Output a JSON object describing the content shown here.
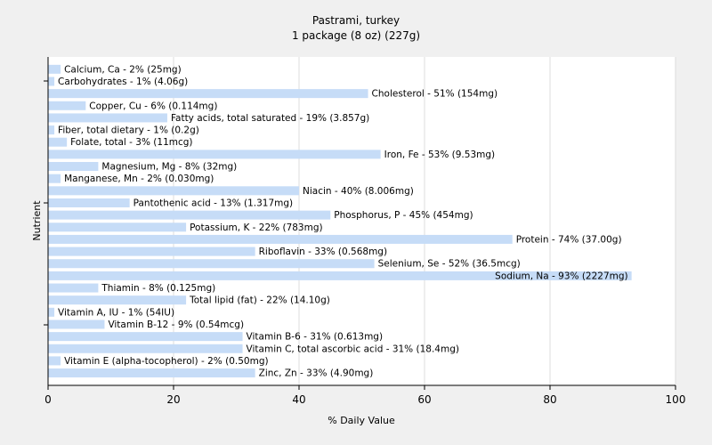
{
  "chart_data": {
    "type": "bar",
    "orientation": "horizontal",
    "title": "Pastrami, turkey",
    "subtitle": "1 package (8 oz) (227g)",
    "xlabel": "% Daily Value",
    "ylabel": "Nutrient",
    "xlim": [
      0,
      100
    ],
    "xticks": [
      0,
      20,
      40,
      60,
      80,
      100
    ],
    "grid": true,
    "bar_color": "#c6dcf7",
    "bars": [
      {
        "name": "Calcium, Ca",
        "value": 2,
        "label": "Calcium, Ca - 2% (25mg)"
      },
      {
        "name": "Carbohydrates",
        "value": 1,
        "label": "Carbohydrates - 1% (4.06g)"
      },
      {
        "name": "Cholesterol",
        "value": 51,
        "label": "Cholesterol - 51% (154mg)"
      },
      {
        "name": "Copper, Cu",
        "value": 6,
        "label": "Copper, Cu - 6% (0.114mg)"
      },
      {
        "name": "Fatty acids, total saturated",
        "value": 19,
        "label": "Fatty acids, total saturated - 19% (3.857g)"
      },
      {
        "name": "Fiber, total dietary",
        "value": 1,
        "label": "Fiber, total dietary - 1% (0.2g)"
      },
      {
        "name": "Folate, total",
        "value": 3,
        "label": "Folate, total - 3% (11mcg)"
      },
      {
        "name": "Iron, Fe",
        "value": 53,
        "label": "Iron, Fe - 53% (9.53mg)"
      },
      {
        "name": "Magnesium, Mg",
        "value": 8,
        "label": "Magnesium, Mg - 8% (32mg)"
      },
      {
        "name": "Manganese, Mn",
        "value": 2,
        "label": "Manganese, Mn - 2% (0.030mg)"
      },
      {
        "name": "Niacin",
        "value": 40,
        "label": "Niacin - 40% (8.006mg)"
      },
      {
        "name": "Pantothenic acid",
        "value": 13,
        "label": "Pantothenic acid - 13% (1.317mg)"
      },
      {
        "name": "Phosphorus, P",
        "value": 45,
        "label": "Phosphorus, P - 45% (454mg)"
      },
      {
        "name": "Potassium, K",
        "value": 22,
        "label": "Potassium, K - 22% (783mg)"
      },
      {
        "name": "Protein",
        "value": 74,
        "label": "Protein - 74% (37.00g)"
      },
      {
        "name": "Riboflavin",
        "value": 33,
        "label": "Riboflavin - 33% (0.568mg)"
      },
      {
        "name": "Selenium, Se",
        "value": 52,
        "label": "Selenium, Se - 52% (36.5mcg)"
      },
      {
        "name": "Sodium, Na",
        "value": 93,
        "label": "Sodium, Na - 93% (2227mg)"
      },
      {
        "name": "Thiamin",
        "value": 8,
        "label": "Thiamin - 8% (0.125mg)"
      },
      {
        "name": "Total lipid (fat)",
        "value": 22,
        "label": "Total lipid (fat) - 22% (14.10g)"
      },
      {
        "name": "Vitamin A, IU",
        "value": 1,
        "label": "Vitamin A, IU - 1% (54IU)"
      },
      {
        "name": "Vitamin B-12",
        "value": 9,
        "label": "Vitamin B-12 - 9% (0.54mcg)"
      },
      {
        "name": "Vitamin B-6",
        "value": 31,
        "label": "Vitamin B-6 - 31% (0.613mg)"
      },
      {
        "name": "Vitamin C, total ascorbic acid",
        "value": 31,
        "label": "Vitamin C, total ascorbic acid - 31% (18.4mg)"
      },
      {
        "name": "Vitamin E (alpha-tocopherol)",
        "value": 2,
        "label": "Vitamin E (alpha-tocopherol) - 2% (0.50mg)"
      },
      {
        "name": "Zinc, Zn",
        "value": 33,
        "label": "Zinc, Zn - 33% (4.90mg)"
      }
    ]
  }
}
